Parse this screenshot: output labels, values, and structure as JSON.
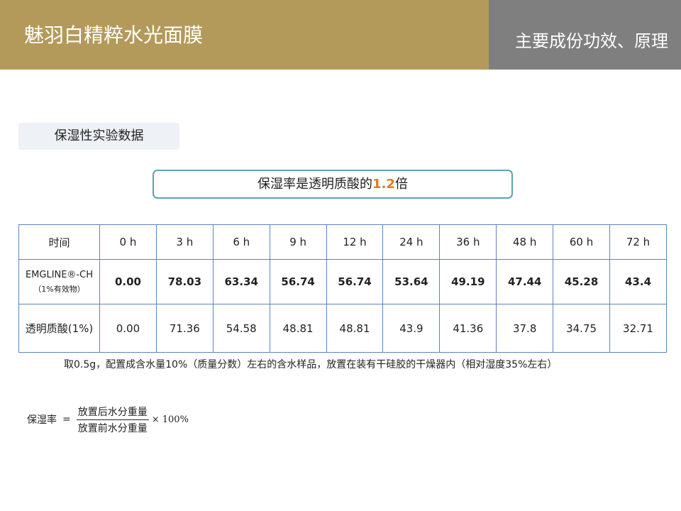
{
  "header": {
    "title": "魅羽白精粹水光面膜",
    "subtitle": "主要成份功效、原理"
  },
  "section_label": "保湿性实验数据",
  "highlight": {
    "prefix": "保湿率是透明质酸的",
    "value": "1.2",
    "suffix": "倍",
    "accent_color": "#e07b1f"
  },
  "table": {
    "header": [
      "时间",
      "0 h",
      "3 h",
      "6 h",
      "9 h",
      "12 h",
      "24 h",
      "36 h",
      "48 h",
      "60 h",
      "72 h"
    ],
    "emgline": {
      "label_line1": "EMGLINE®-CH",
      "label_line2": "（1%有效物）",
      "values": [
        "0.00",
        "78.03",
        "63.34",
        "56.74",
        "56.74",
        "53.64",
        "49.19",
        "47.44",
        "45.28",
        "43.4"
      ]
    },
    "hyaluronic": {
      "label": "透明质酸(1%)",
      "values": [
        "0.00",
        "71.36",
        "54.58",
        "48.81",
        "48.81",
        "43.9",
        "41.36",
        "37.8",
        "34.75",
        "32.71"
      ]
    },
    "border_color": "#5b84c2",
    "value_color": "#4d7fc0"
  },
  "footnote": "取0.5g，配置成含水量10%（质量分数）左右的含水样品，放置在装有干硅胶的干燥器内（相对湿度35%左右）",
  "formula": {
    "lhs": "保湿率",
    "eq": "=",
    "numerator": "放置后水分重量",
    "denominator": "放置前水分重量",
    "multiplier": "× 100%"
  },
  "colors": {
    "header_left": "#b49a5a",
    "header_right": "#7f7f7f",
    "highlight_border": "#5aa3b5",
    "section_bg": "#eef1f5"
  }
}
